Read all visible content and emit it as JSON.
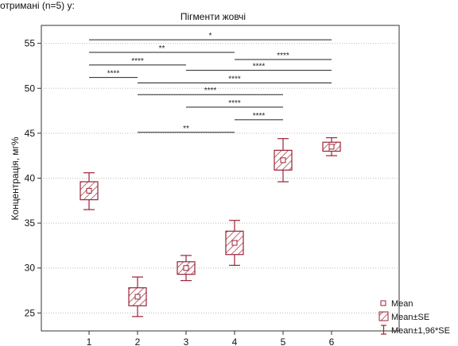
{
  "caption_fragment": "отримані (n=5) у:",
  "chart_data": {
    "type": "box",
    "title": "Пігменти жовчі",
    "xlabel": "",
    "ylabel": "Концентрація, мг%",
    "ylim": [
      23,
      57
    ],
    "yticks": [
      25,
      30,
      35,
      40,
      45,
      50,
      55
    ],
    "categories": [
      "1",
      "2",
      "3",
      "4",
      "5",
      "6"
    ],
    "grid": "horizontal-dotted",
    "legend_position": "bottom-right",
    "series": [
      {
        "mean": [
          38.6,
          26.8,
          30.0,
          32.8,
          42.0,
          43.5
        ],
        "se_low": [
          37.6,
          25.8,
          29.3,
          31.5,
          40.9,
          43.0
        ],
        "se_high": [
          39.6,
          27.8,
          30.7,
          34.1,
          43.1,
          44.0
        ],
        "ci_low": [
          36.5,
          24.6,
          28.6,
          30.3,
          39.6,
          42.5
        ],
        "ci_high": [
          40.6,
          29.0,
          31.4,
          35.3,
          44.4,
          44.5
        ]
      }
    ],
    "significance": [
      {
        "from": 1,
        "to": 6,
        "y": 55.4,
        "label": "*"
      },
      {
        "from": 1,
        "to": 4,
        "y": 54.0,
        "label": "**"
      },
      {
        "from": 4,
        "to": 6,
        "y": 53.2,
        "label": "****"
      },
      {
        "from": 1,
        "to": 3,
        "y": 52.6,
        "label": "****"
      },
      {
        "from": 3,
        "to": 6,
        "y": 52.0,
        "label": "****"
      },
      {
        "from": 1,
        "to": 2,
        "y": 51.2,
        "label": "****"
      },
      {
        "from": 2,
        "to": 6,
        "y": 50.6,
        "label": "****"
      },
      {
        "from": 2,
        "to": 5,
        "y": 49.3,
        "label": "****"
      },
      {
        "from": 3,
        "to": 5,
        "y": 47.9,
        "label": "****"
      },
      {
        "from": 4,
        "to": 5,
        "y": 46.5,
        "label": "****"
      },
      {
        "from": 2,
        "to": 4,
        "y": 45.1,
        "label": "**"
      }
    ],
    "legend": [
      "Mean",
      "Mean±SE",
      "Mean±1,96*SE"
    ],
    "colors": {
      "box": "#9b2335",
      "significance": "#222222",
      "grid": "#bbbbbb",
      "text": "#111111"
    }
  }
}
